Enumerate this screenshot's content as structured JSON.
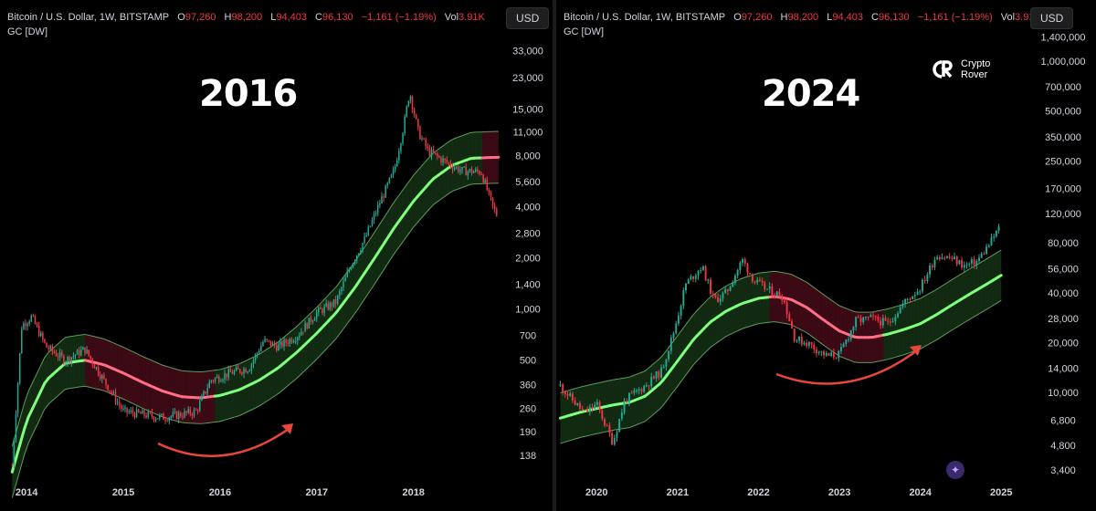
{
  "legend": {
    "symbol": "Bitcoin / U.S. Dollar, 1W, BITSTAMP",
    "o_label": "O",
    "o_value": "97,260",
    "h_label": "H",
    "h_value": "98,200",
    "l_label": "L",
    "l_value": "94,403",
    "c_label": "C",
    "c_value": "96,130",
    "change": "−1,161 (−1.19%)",
    "vol_label": "Vol",
    "vol_value": "3.91K",
    "indicator": "GC [DW]"
  },
  "currency": "USD",
  "logo": {
    "line1": "Crypto",
    "line2": "Rover"
  },
  "colors": {
    "background": "#000000",
    "candle_up": "#22ab94",
    "candle_down": "#f23645",
    "band_green_fill": "rgba(60,150,60,0.28)",
    "band_red_fill": "rgba(170,30,60,0.35)",
    "center_green": "#7dff7d",
    "center_red": "#ff6e86",
    "arrow": "#e8473c"
  },
  "chart_data": [
    {
      "type": "candlestick",
      "title": "2016",
      "scale": "log",
      "ylim": [
        100,
        40000
      ],
      "x_labels": [
        "2014",
        "2015",
        "2016",
        "2017",
        "2018"
      ],
      "xlim": [
        2013.8,
        2018.9
      ],
      "y_ticks": [
        "33,000",
        "23,000",
        "15,000",
        "11,000",
        "8,000",
        "5,600",
        "4,000",
        "2,800",
        "2,000",
        "1,400",
        "1,000",
        "700",
        "500",
        "360",
        "260",
        "190",
        "138"
      ],
      "y_tick_values": [
        33000,
        23000,
        15000,
        11000,
        8000,
        5600,
        4000,
        2800,
        2000,
        1400,
        1000,
        700,
        500,
        360,
        260,
        190,
        138
      ],
      "price_path": [
        [
          2013.85,
          120
        ],
        [
          2013.95,
          800
        ],
        [
          2014.05,
          900
        ],
        [
          2014.2,
          600
        ],
        [
          2014.4,
          500
        ],
        [
          2014.6,
          580
        ],
        [
          2014.8,
          380
        ],
        [
          2015.0,
          250
        ],
        [
          2015.2,
          240
        ],
        [
          2015.4,
          230
        ],
        [
          2015.6,
          240
        ],
        [
          2015.75,
          250
        ],
        [
          2015.9,
          380
        ],
        [
          2016.1,
          420
        ],
        [
          2016.3,
          450
        ],
        [
          2016.45,
          650
        ],
        [
          2016.6,
          600
        ],
        [
          2016.8,
          700
        ],
        [
          2017.0,
          950
        ],
        [
          2017.2,
          1100
        ],
        [
          2017.35,
          1800
        ],
        [
          2017.5,
          2600
        ],
        [
          2017.65,
          4200
        ],
        [
          2017.8,
          6500
        ],
        [
          2017.9,
          12000
        ],
        [
          2017.96,
          19000
        ],
        [
          2018.05,
          11000
        ],
        [
          2018.15,
          8500
        ],
        [
          2018.3,
          7500
        ],
        [
          2018.5,
          6500
        ],
        [
          2018.7,
          6400
        ],
        [
          2018.82,
          4000
        ],
        [
          2018.88,
          3400
        ]
      ],
      "band_center": [
        [
          2013.85,
          110
        ],
        [
          2014.0,
          220
        ],
        [
          2014.2,
          380
        ],
        [
          2014.4,
          480
        ],
        [
          2014.6,
          500
        ],
        [
          2014.8,
          470
        ],
        [
          2015.0,
          420
        ],
        [
          2015.2,
          370
        ],
        [
          2015.4,
          330
        ],
        [
          2015.6,
          305
        ],
        [
          2015.8,
          300
        ],
        [
          2016.0,
          310
        ],
        [
          2016.2,
          335
        ],
        [
          2016.4,
          380
        ],
        [
          2016.6,
          450
        ],
        [
          2016.8,
          560
        ],
        [
          2017.0,
          720
        ],
        [
          2017.2,
          950
        ],
        [
          2017.4,
          1350
        ],
        [
          2017.6,
          2000
        ],
        [
          2017.8,
          3000
        ],
        [
          2018.0,
          4300
        ],
        [
          2018.2,
          5800
        ],
        [
          2018.4,
          7000
        ],
        [
          2018.6,
          7700
        ],
        [
          2018.88,
          7800
        ]
      ],
      "band_red_range": [
        2014.6,
        2015.95
      ],
      "band_red_range_2": [
        2018.7,
        2018.88
      ]
    },
    {
      "type": "candlestick",
      "title": "2024",
      "scale": "log",
      "ylim": [
        3000,
        1600000
      ],
      "x_labels": [
        "2020",
        "2021",
        "2022",
        "2023",
        "2024",
        "2025"
      ],
      "xlim": [
        2019.5,
        2025.2
      ],
      "y_ticks": [
        "1,400,000",
        "1,000,000",
        "700,000",
        "500,000",
        "350,000",
        "250,000",
        "170,000",
        "120,000",
        "80,000",
        "56,000",
        "40,000",
        "28,000",
        "20,000",
        "14,000",
        "10,000",
        "6,800",
        "4,800",
        "3,400"
      ],
      "y_tick_values": [
        1400000,
        1000000,
        700000,
        500000,
        350000,
        250000,
        170000,
        120000,
        80000,
        56000,
        40000,
        28000,
        20000,
        14000,
        10000,
        6800,
        4800,
        3400
      ],
      "price_path": [
        [
          2019.55,
          11000
        ],
        [
          2019.7,
          9000
        ],
        [
          2019.85,
          7500
        ],
        [
          2020.0,
          8500
        ],
        [
          2020.2,
          5000
        ],
        [
          2020.35,
          9000
        ],
        [
          2020.6,
          11000
        ],
        [
          2020.8,
          13500
        ],
        [
          2020.95,
          23000
        ],
        [
          2021.1,
          45000
        ],
        [
          2021.3,
          58000
        ],
        [
          2021.45,
          36000
        ],
        [
          2021.6,
          40000
        ],
        [
          2021.8,
          63000
        ],
        [
          2021.95,
          47000
        ],
        [
          2022.1,
          42000
        ],
        [
          2022.3,
          38000
        ],
        [
          2022.45,
          21000
        ],
        [
          2022.6,
          20000
        ],
        [
          2022.85,
          16500
        ],
        [
          2023.0,
          17000
        ],
        [
          2023.2,
          27000
        ],
        [
          2023.4,
          28000
        ],
        [
          2023.6,
          26000
        ],
        [
          2023.8,
          35000
        ],
        [
          2024.0,
          43000
        ],
        [
          2024.2,
          68000
        ],
        [
          2024.4,
          64000
        ],
        [
          2024.55,
          58000
        ],
        [
          2024.7,
          62000
        ],
        [
          2024.85,
          78000
        ],
        [
          2024.95,
          95000
        ],
        [
          2025.0,
          100000
        ]
      ],
      "band_center": [
        [
          2019.55,
          7000
        ],
        [
          2019.8,
          7600
        ],
        [
          2020.0,
          8000
        ],
        [
          2020.2,
          8400
        ],
        [
          2020.4,
          8700
        ],
        [
          2020.6,
          9500
        ],
        [
          2020.8,
          11500
        ],
        [
          2021.0,
          15500
        ],
        [
          2021.2,
          21000
        ],
        [
          2021.4,
          26500
        ],
        [
          2021.6,
          31000
        ],
        [
          2021.8,
          34500
        ],
        [
          2022.0,
          37000
        ],
        [
          2022.2,
          38000
        ],
        [
          2022.4,
          36500
        ],
        [
          2022.6,
          32500
        ],
        [
          2022.8,
          27500
        ],
        [
          2023.0,
          23500
        ],
        [
          2023.2,
          21500
        ],
        [
          2023.4,
          21500
        ],
        [
          2023.6,
          22500
        ],
        [
          2023.8,
          24000
        ],
        [
          2024.0,
          26000
        ],
        [
          2024.2,
          29500
        ],
        [
          2024.4,
          34000
        ],
        [
          2024.6,
          39000
        ],
        [
          2024.8,
          44500
        ],
        [
          2025.0,
          51000
        ]
      ],
      "band_red_range": [
        2022.15,
        2023.55
      ]
    }
  ]
}
